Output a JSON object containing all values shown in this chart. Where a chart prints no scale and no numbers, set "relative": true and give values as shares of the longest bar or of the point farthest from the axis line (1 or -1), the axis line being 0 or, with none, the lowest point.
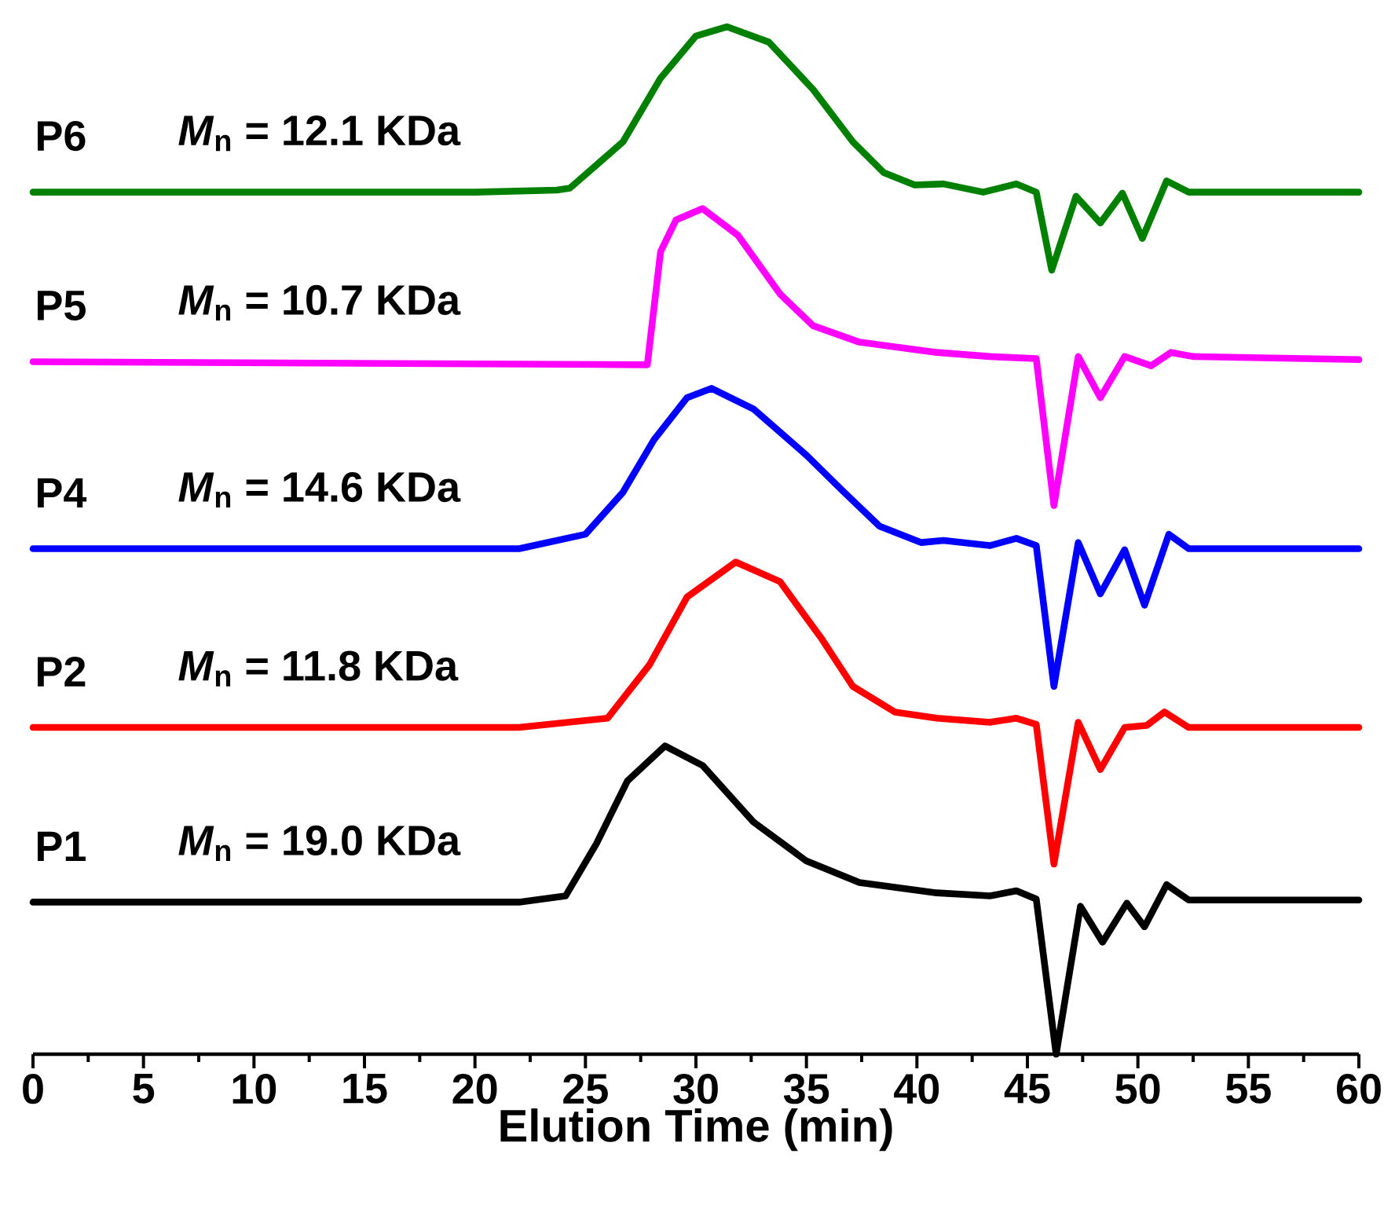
{
  "chart_data": {
    "type": "line",
    "xlabel": "Elution Time (min)",
    "relative": true,
    "xlim": [
      0,
      60
    ],
    "xticks": [
      0,
      5,
      10,
      15,
      20,
      25,
      30,
      35,
      40,
      45,
      50,
      55,
      60
    ],
    "line_style": "solid",
    "annotations": [
      "*M*$_{n}$ = 12.1 KDa",
      "*M*$_{n}$ = 10.7 KDa",
      "*M*$_{n}$ = 14.6 KDa",
      "*M*$_{n}$ = 11.8 KDa",
      "*M*$_{n}$ = 19.0 KDa"
    ],
    "series": [
      {
        "name": "P6",
        "color": "#008000",
        "x": [
          0,
          20,
          23.7,
          24.3,
          26.7,
          28.4,
          30.0,
          31.4,
          33.3,
          35.3,
          37.1,
          38.5,
          39.9,
          41.2,
          43,
          44.5,
          45.4,
          46.1,
          47.2,
          48.3,
          49.3,
          50.2,
          51.3,
          52.3,
          60
        ],
        "values": [
          0.839,
          0.839,
          0.841,
          0.843,
          0.888,
          0.95,
          0.991,
          1.0,
          0.985,
          0.939,
          0.888,
          0.858,
          0.846,
          0.847,
          0.839,
          0.847,
          0.839,
          0.763,
          0.835,
          0.809,
          0.838,
          0.794,
          0.85,
          0.839,
          0.839
        ]
      },
      {
        "name": "P5",
        "color": "#ff00ff",
        "x": [
          0,
          27.8,
          28.4,
          29.1,
          30.3,
          31.9,
          33.8,
          35.3,
          37.4,
          40.9,
          43.3,
          45.4,
          46.2,
          47.3,
          48.3,
          49.4,
          50.6,
          51.5,
          52.5,
          60
        ],
        "values": [
          0.674,
          0.671,
          0.781,
          0.812,
          0.823,
          0.797,
          0.74,
          0.709,
          0.693,
          0.683,
          0.679,
          0.677,
          0.534,
          0.679,
          0.639,
          0.679,
          0.67,
          0.683,
          0.679,
          0.676
        ]
      },
      {
        "name": "P4",
        "color": "#0000ff",
        "x": [
          0,
          22,
          25.0,
          26.7,
          28.1,
          29.6,
          30.7,
          32.6,
          35.0,
          36.7,
          38.3,
          40.2,
          41.2,
          43.3,
          44.5,
          45.4,
          46.2,
          47.3,
          48.3,
          49.4,
          50.3,
          51.4,
          52.3,
          60
        ],
        "values": [
          0.492,
          0.492,
          0.506,
          0.547,
          0.598,
          0.639,
          0.648,
          0.628,
          0.583,
          0.547,
          0.514,
          0.498,
          0.5,
          0.495,
          0.502,
          0.495,
          0.358,
          0.498,
          0.448,
          0.491,
          0.437,
          0.506,
          0.492,
          0.492
        ]
      },
      {
        "name": "P2",
        "color": "#ff0000",
        "x": [
          0,
          22,
          26.0,
          27.9,
          29.6,
          31.8,
          33.8,
          35.7,
          37.1,
          39.0,
          40.9,
          43.3,
          44.5,
          45.4,
          46.2,
          47.3,
          48.3,
          49.4,
          50.4,
          51.2,
          52.3,
          60
        ],
        "values": [
          0.318,
          0.318,
          0.327,
          0.379,
          0.445,
          0.479,
          0.46,
          0.404,
          0.358,
          0.333,
          0.327,
          0.323,
          0.327,
          0.321,
          0.185,
          0.323,
          0.277,
          0.318,
          0.32,
          0.333,
          0.318,
          0.318
        ]
      },
      {
        "name": "P1",
        "color": "#000000",
        "x": [
          0,
          22,
          24.1,
          25.5,
          26.9,
          28.6,
          30.3,
          32.6,
          35.0,
          37.4,
          40.9,
          43.3,
          44.5,
          45.4,
          46.3,
          47.4,
          48.4,
          49.5,
          50.3,
          51.3,
          52.3,
          60
        ],
        "values": [
          0.148,
          0.148,
          0.154,
          0.205,
          0.266,
          0.3,
          0.281,
          0.226,
          0.188,
          0.167,
          0.157,
          0.154,
          0.159,
          0.151,
          0.0,
          0.144,
          0.109,
          0.147,
          0.124,
          0.165,
          0.15,
          0.15
        ]
      }
    ]
  }
}
